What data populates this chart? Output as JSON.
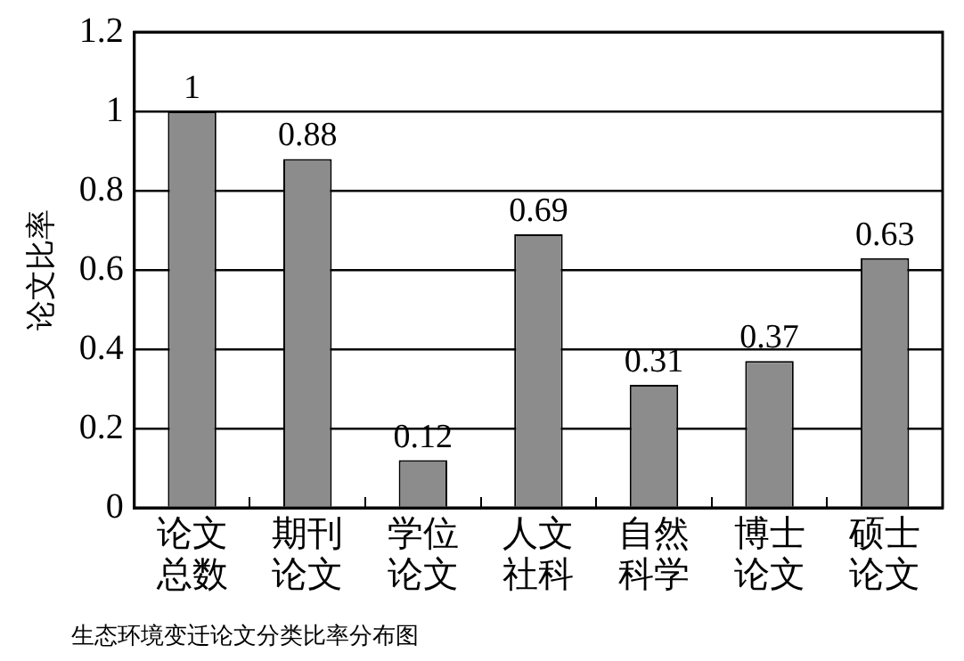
{
  "chart_data": {
    "type": "bar",
    "ylabel": "论文比率",
    "categories": [
      "论文总数",
      "期刊论文",
      "学位论文",
      "人文社科",
      "自然科学",
      "博士论文",
      "硕士论文"
    ],
    "values": [
      1,
      0.88,
      0.12,
      0.69,
      0.31,
      0.37,
      0.63
    ],
    "color": "#8c8c8c",
    "ylim": [
      0,
      1.2
    ],
    "yticks": [
      0,
      0.2,
      0.4,
      0.6,
      0.8,
      1,
      1.2
    ],
    "grid": "y",
    "data_labels": true,
    "legend": false,
    "annotations": [
      "生态环境变迁论文分类比率分布图"
    ]
  }
}
